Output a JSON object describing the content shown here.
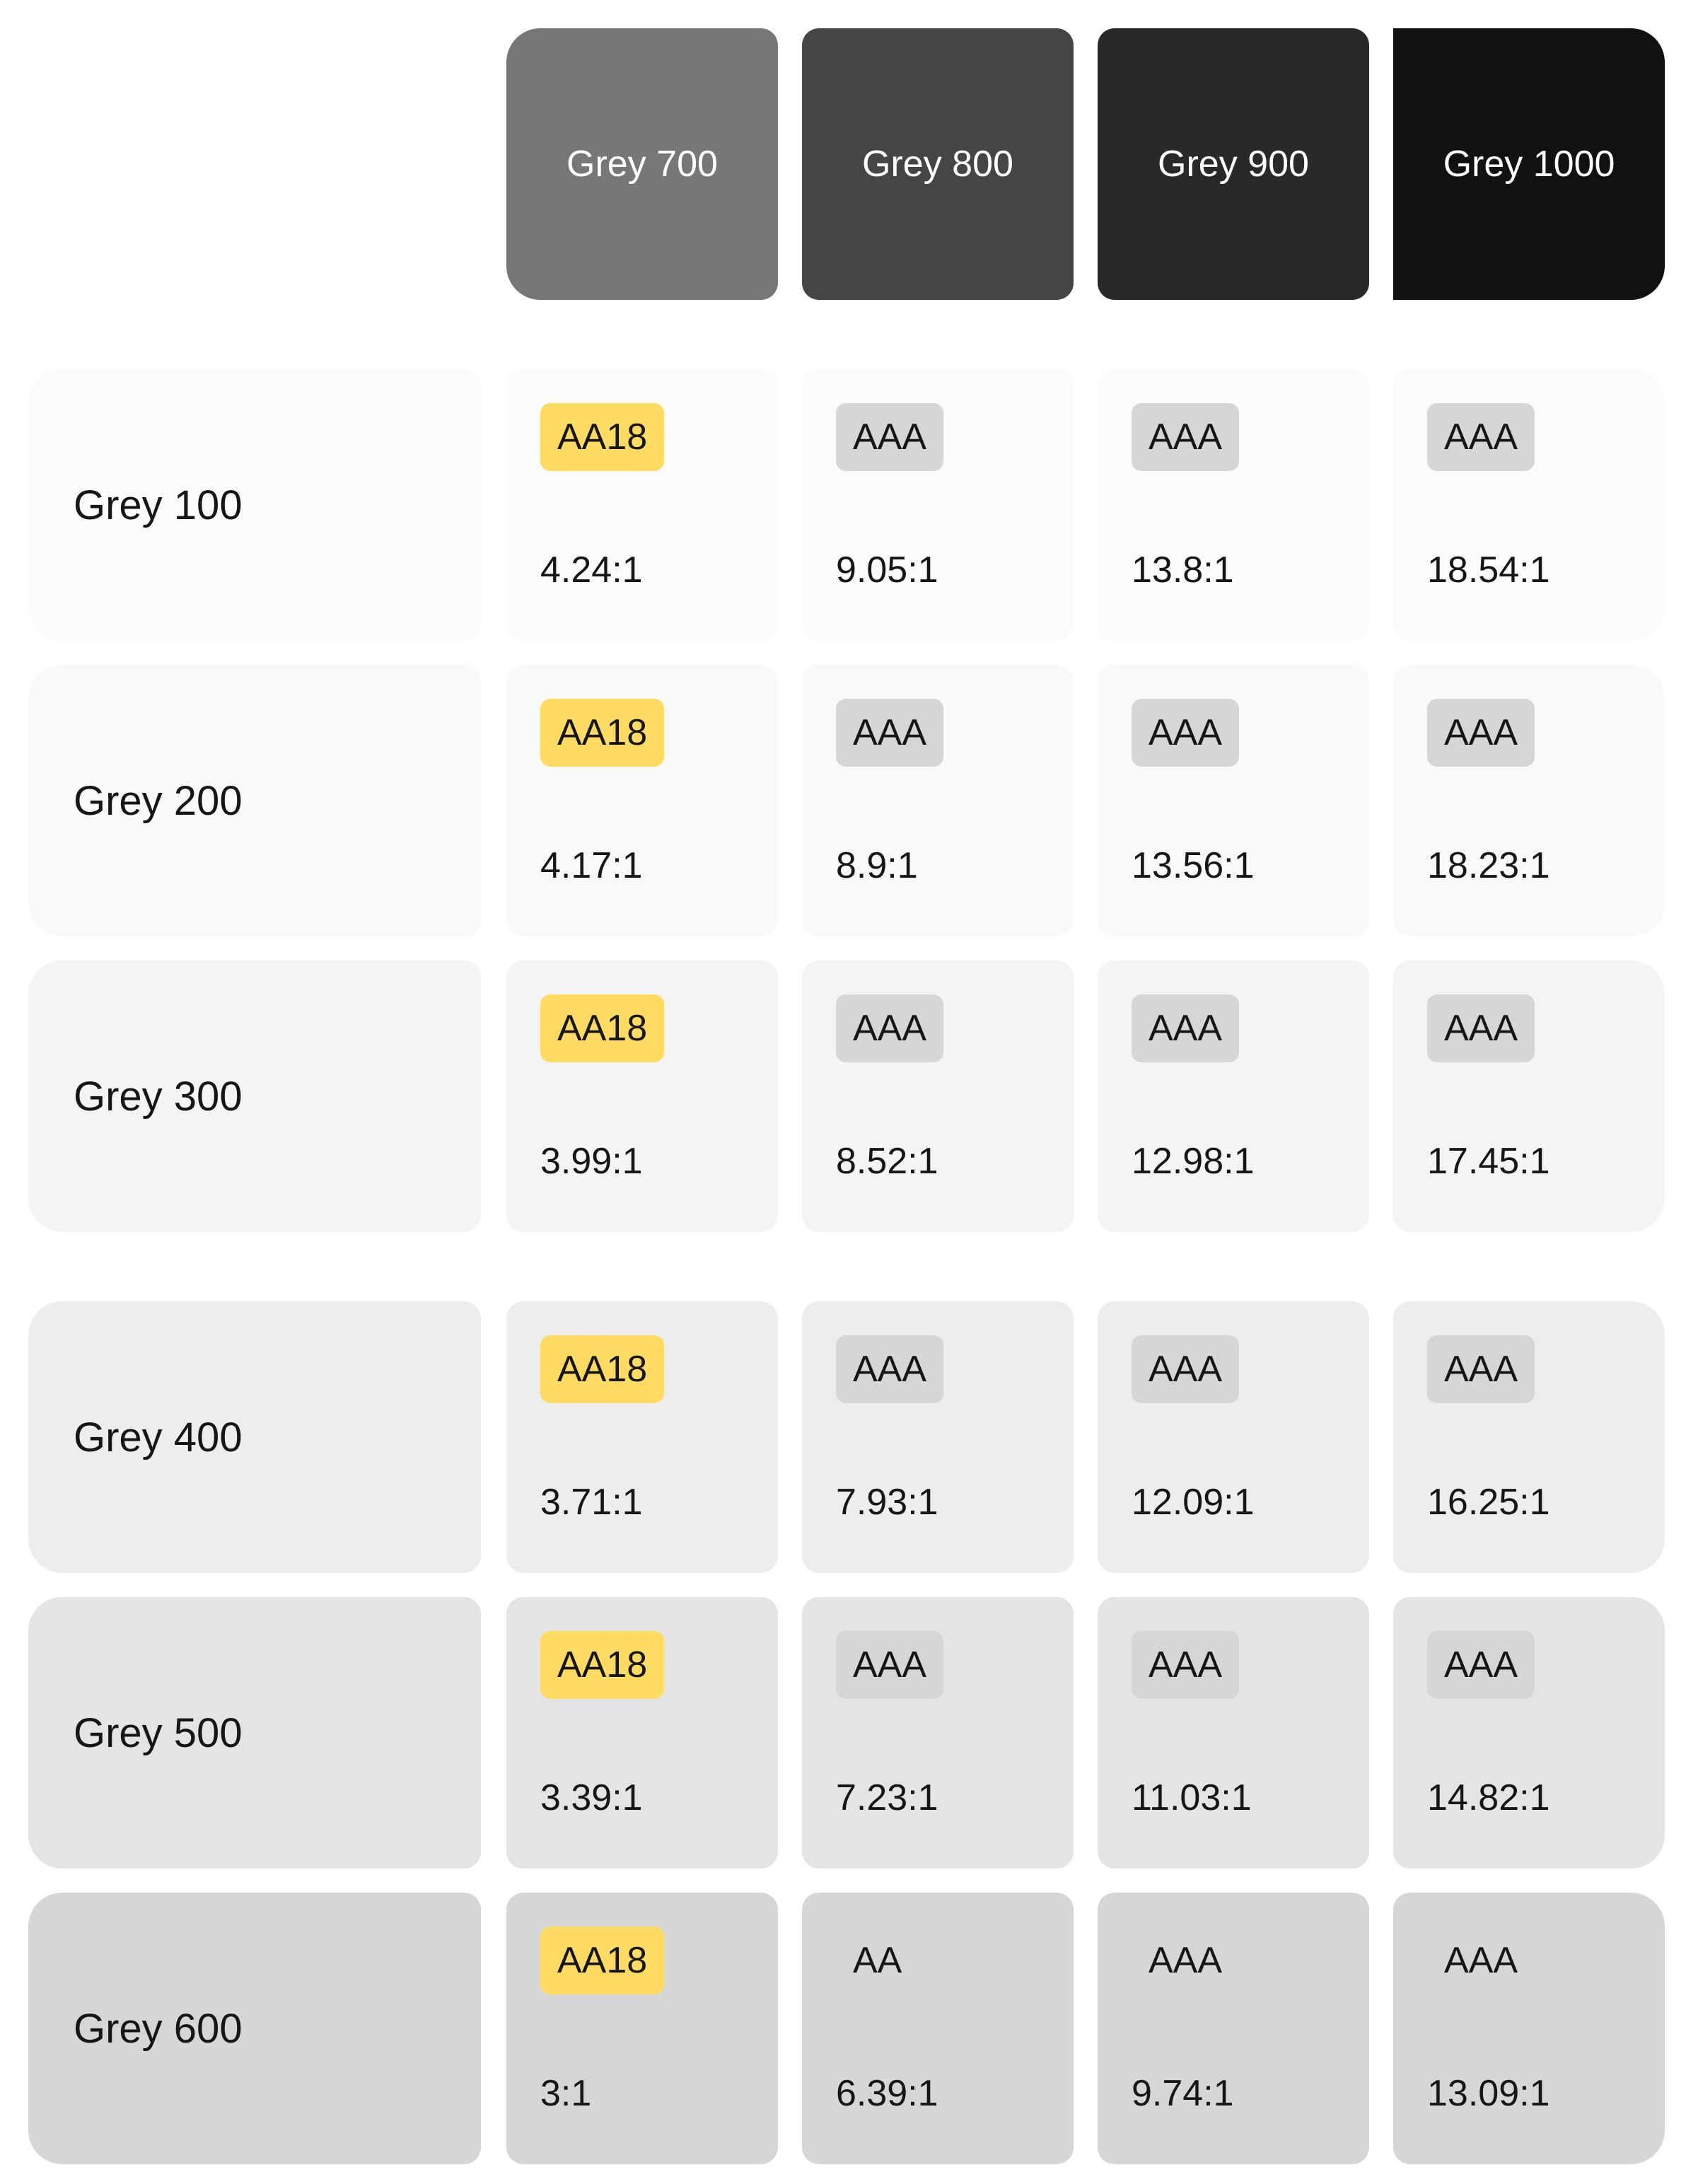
{
  "colors": {
    "badge_aa18": "#ffdb62",
    "badge_default": "#d6d6d6",
    "text_dark": "#161616",
    "text_light": "#ffffff"
  },
  "columns": [
    {
      "label": "Grey 700",
      "color": "#777777"
    },
    {
      "label": "Grey 800",
      "color": "#454545"
    },
    {
      "label": "Grey 900",
      "color": "#292929"
    },
    {
      "label": "Grey 1000",
      "color": "#111111"
    }
  ],
  "rows": [
    {
      "label": "Grey 100",
      "color": "#fbfbfb",
      "cells": [
        {
          "badge": "AA18",
          "ratio": "4.24:1"
        },
        {
          "badge": "AAA",
          "ratio": "9.05:1"
        },
        {
          "badge": "AAA",
          "ratio": "13.8:1"
        },
        {
          "badge": "AAA",
          "ratio": "18.54:1"
        }
      ]
    },
    {
      "label": "Grey 200",
      "color": "#f9f9f9",
      "cells": [
        {
          "badge": "AA18",
          "ratio": "4.17:1"
        },
        {
          "badge": "AAA",
          "ratio": "8.9:1"
        },
        {
          "badge": "AAA",
          "ratio": "13.56:1"
        },
        {
          "badge": "AAA",
          "ratio": "18.23:1"
        }
      ]
    },
    {
      "label": "Grey 300",
      "color": "#f4f4f4",
      "cells": [
        {
          "badge": "AA18",
          "ratio": "3.99:1"
        },
        {
          "badge": "AAA",
          "ratio": "8.52:1"
        },
        {
          "badge": "AAA",
          "ratio": "12.98:1"
        },
        {
          "badge": "AAA",
          "ratio": "17.45:1"
        }
      ]
    },
    {
      "label": "Grey 400",
      "color": "#ededed",
      "cells": [
        {
          "badge": "AA18",
          "ratio": "3.71:1"
        },
        {
          "badge": "AAA",
          "ratio": "7.93:1"
        },
        {
          "badge": "AAA",
          "ratio": "12.09:1"
        },
        {
          "badge": "AAA",
          "ratio": "16.25:1"
        }
      ]
    },
    {
      "label": "Grey 500",
      "color": "#e4e4e4",
      "cells": [
        {
          "badge": "AA18",
          "ratio": "3.39:1"
        },
        {
          "badge": "AAA",
          "ratio": "7.23:1"
        },
        {
          "badge": "AAA",
          "ratio": "11.03:1"
        },
        {
          "badge": "AAA",
          "ratio": "14.82:1"
        }
      ]
    },
    {
      "label": "Grey 600",
      "color": "#d6d6d6",
      "cells": [
        {
          "badge": "AA18",
          "ratio": "3:1"
        },
        {
          "badge": "AA",
          "ratio": "6.39:1"
        },
        {
          "badge": "AAA",
          "ratio": "9.74:1"
        },
        {
          "badge": "AAA",
          "ratio": "13.09:1"
        }
      ]
    }
  ]
}
